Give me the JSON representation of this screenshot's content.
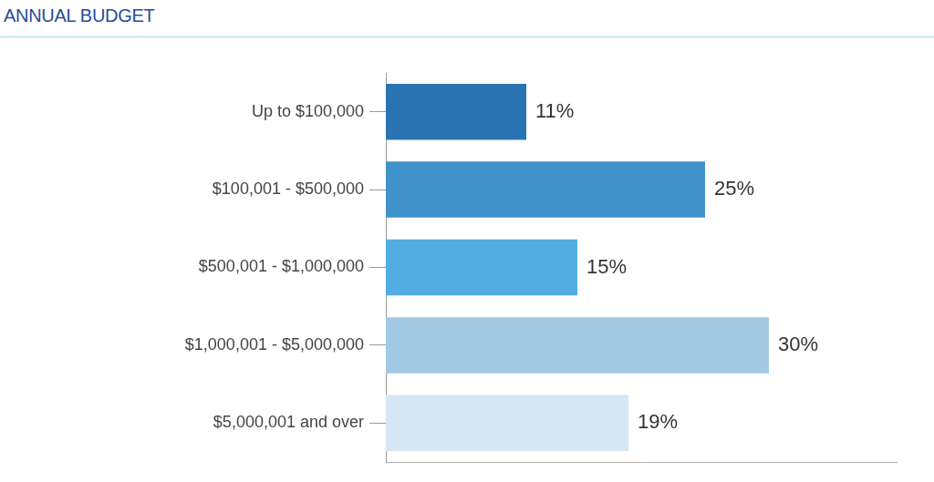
{
  "chart_data": {
    "type": "bar",
    "title": "ANNUAL BUDGET",
    "orientation": "horizontal",
    "categories": [
      "Up to $100,000",
      "$100,001 - $500,000",
      "$500,001 - $1,000,000",
      "$1,000,001 - $5,000,000",
      "$5,000,001 and over"
    ],
    "values": [
      11,
      25,
      15,
      30,
      19
    ],
    "value_labels": [
      "11%",
      "25%",
      "15%",
      "30%",
      "19%"
    ],
    "colors": [
      "#2b74b3",
      "#4092ca",
      "#53ade2",
      "#a2c8e3",
      "#d6e7f3"
    ],
    "xlim": [
      0,
      40
    ],
    "data_labels": true,
    "tick_labels": "y",
    "grid": false
  }
}
